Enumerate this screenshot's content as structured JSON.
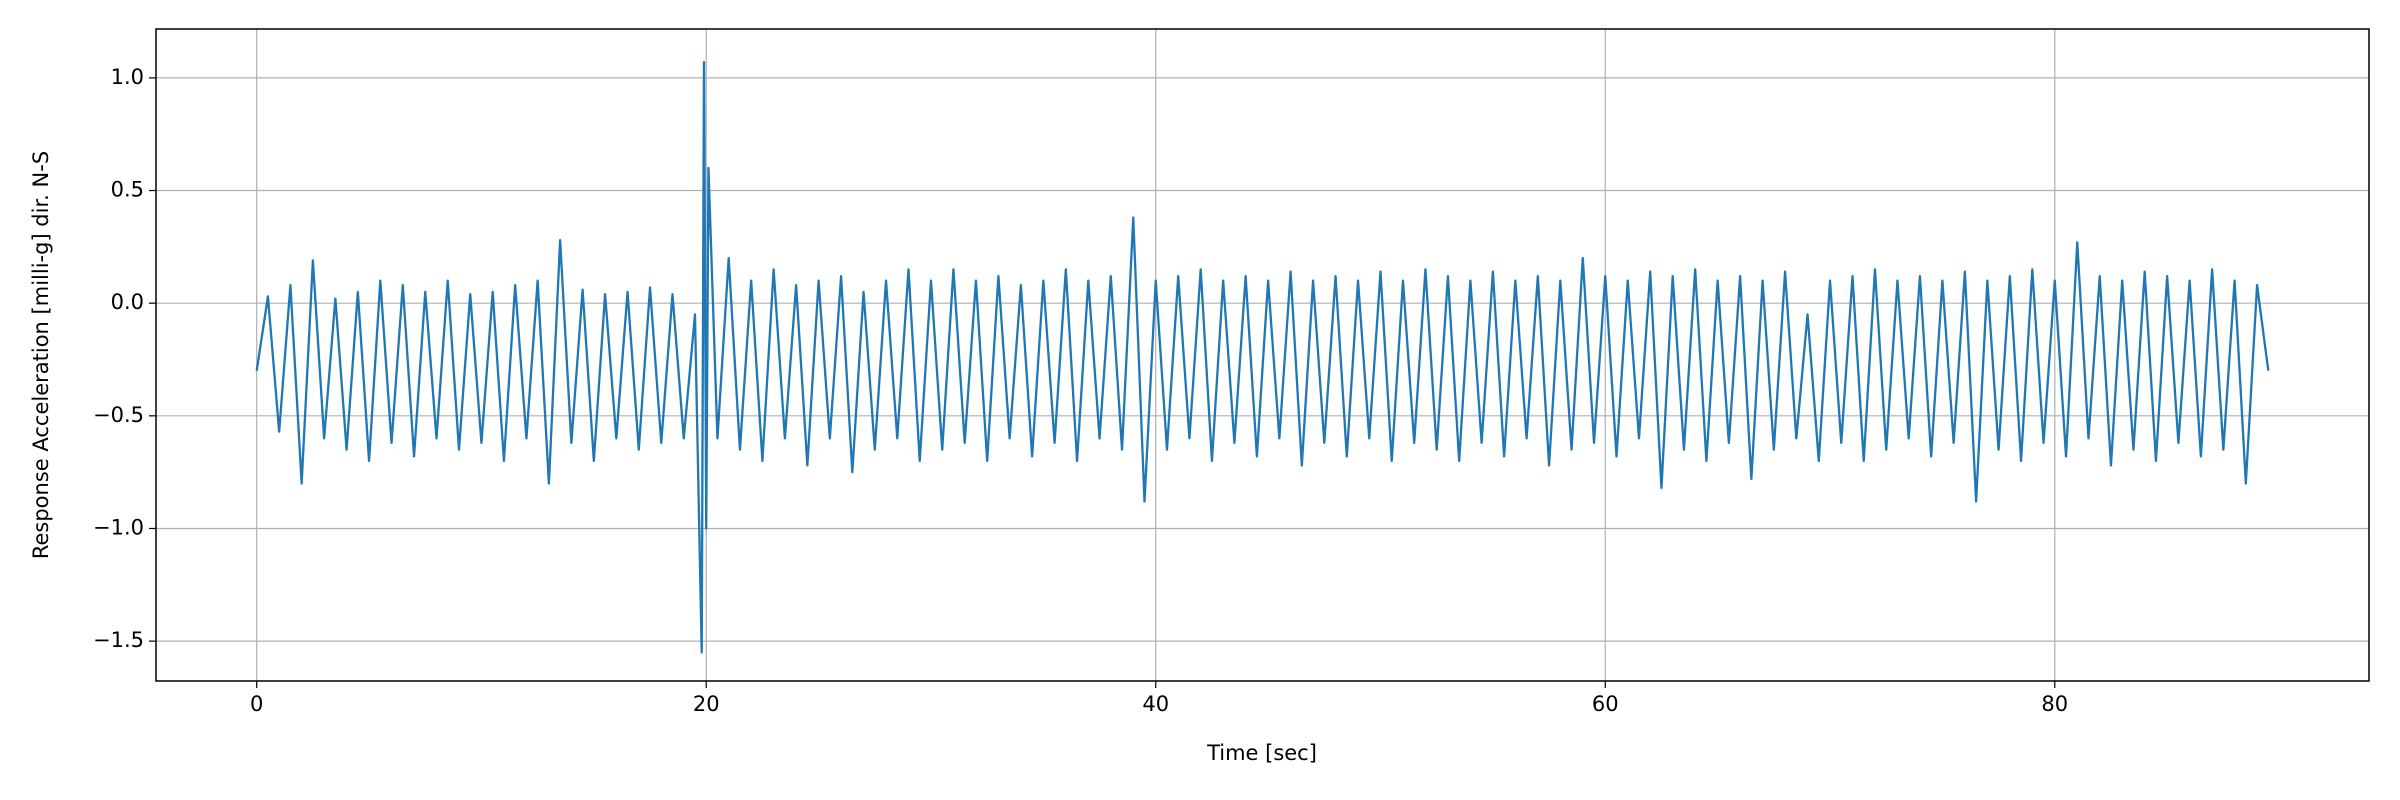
{
  "chart_data": {
    "type": "line",
    "xlabel": "Time [sec]",
    "ylabel": "Response Acceleration [milli-g] dir. N-S",
    "color": "#1f77b4",
    "grid": true,
    "xlim": [
      -4.48,
      93.98
    ],
    "ylim": [
      -1.677,
      1.217
    ],
    "xticks": [
      0,
      20,
      40,
      60,
      80
    ],
    "yticks": [
      {
        "value": -1.5,
        "label": "−1.5"
      },
      {
        "value": -1.0,
        "label": "−1.0"
      },
      {
        "value": -0.5,
        "label": "−0.5"
      },
      {
        "value": 0.0,
        "label": "0.0"
      },
      {
        "value": 0.5,
        "label": "0.5"
      },
      {
        "value": 1.0,
        "label": "1.0"
      }
    ],
    "x": [
      0,
      0.5,
      1,
      1.5,
      2,
      2.5,
      3,
      3.5,
      4,
      4.5,
      5,
      5.5,
      6,
      6.5,
      7,
      7.5,
      8,
      8.5,
      9,
      9.5,
      10,
      10.5,
      11,
      11.5,
      12,
      12.5,
      13,
      13.5,
      14,
      14.5,
      15,
      15.5,
      16,
      16.5,
      17,
      17.5,
      18,
      18.5,
      19,
      19.5,
      19.8,
      19.9,
      20,
      20.1,
      20.5,
      21,
      21.5,
      22,
      22.5,
      23,
      23.5,
      24,
      24.5,
      25,
      25.5,
      26,
      26.5,
      27,
      27.5,
      28,
      28.5,
      29,
      29.5,
      30,
      30.5,
      31,
      31.5,
      32,
      32.5,
      33,
      33.5,
      34,
      34.5,
      35,
      35.5,
      36,
      36.5,
      37,
      37.5,
      38,
      38.5,
      39,
      39.5,
      40,
      40.5,
      41,
      41.5,
      42,
      42.5,
      43,
      43.5,
      44,
      44.5,
      45,
      45.5,
      46,
      46.5,
      47,
      47.5,
      48,
      48.5,
      49,
      49.5,
      50,
      50.5,
      51,
      51.5,
      52,
      52.5,
      53,
      53.5,
      54,
      54.5,
      55,
      55.5,
      56,
      56.5,
      57,
      57.5,
      58,
      58.5,
      59,
      59.5,
      60,
      60.5,
      61,
      61.5,
      62,
      62.5,
      63,
      63.5,
      64,
      64.5,
      65,
      65.5,
      66,
      66.5,
      67,
      67.5,
      68,
      68.5,
      69,
      69.5,
      70,
      70.5,
      71,
      71.5,
      72,
      72.5,
      73,
      73.5,
      74,
      74.5,
      75,
      75.5,
      76,
      76.5,
      77,
      77.5,
      78,
      78.5,
      79,
      79.5,
      80,
      80.5,
      81,
      81.5,
      82,
      82.5,
      83,
      83.5,
      84,
      84.5,
      85,
      85.5,
      86,
      86.5,
      87,
      87.5,
      88,
      88.5,
      89,
      89.5
    ],
    "values": [
      -0.3,
      0.03,
      -0.57,
      0.08,
      -0.8,
      0.19,
      -0.6,
      0.02,
      -0.65,
      0.05,
      -0.7,
      0.1,
      -0.62,
      0.08,
      -0.68,
      0.05,
      -0.6,
      0.1,
      -0.65,
      0.04,
      -0.62,
      0.05,
      -0.7,
      0.08,
      -0.6,
      0.1,
      -0.8,
      0.28,
      -0.62,
      0.06,
      -0.7,
      0.04,
      -0.6,
      0.05,
      -0.65,
      0.07,
      -0.62,
      0.04,
      -0.6,
      -0.05,
      -1.55,
      1.07,
      -1.0,
      0.6,
      -0.6,
      0.2,
      -0.65,
      0.1,
      -0.7,
      0.15,
      -0.6,
      0.08,
      -0.72,
      0.1,
      -0.6,
      0.12,
      -0.75,
      0.05,
      -0.65,
      0.1,
      -0.6,
      0.15,
      -0.7,
      0.1,
      -0.65,
      0.15,
      -0.62,
      0.1,
      -0.7,
      0.12,
      -0.6,
      0.08,
      -0.68,
      0.1,
      -0.62,
      0.15,
      -0.7,
      0.1,
      -0.6,
      0.12,
      -0.65,
      0.38,
      -0.88,
      0.1,
      -0.65,
      0.12,
      -0.6,
      0.15,
      -0.7,
      0.1,
      -0.62,
      0.12,
      -0.68,
      0.1,
      -0.6,
      0.14,
      -0.72,
      0.1,
      -0.62,
      0.12,
      -0.68,
      0.1,
      -0.6,
      0.14,
      -0.7,
      0.1,
      -0.62,
      0.15,
      -0.65,
      0.12,
      -0.7,
      0.1,
      -0.62,
      0.14,
      -0.68,
      0.1,
      -0.6,
      0.12,
      -0.72,
      0.1,
      -0.65,
      0.2,
      -0.62,
      0.12,
      -0.68,
      0.1,
      -0.6,
      0.14,
      -0.82,
      0.12,
      -0.65,
      0.15,
      -0.7,
      0.1,
      -0.62,
      0.12,
      -0.78,
      0.1,
      -0.65,
      0.14,
      -0.6,
      -0.05,
      -0.7,
      0.1,
      -0.62,
      0.12,
      -0.7,
      0.15,
      -0.65,
      0.1,
      -0.6,
      0.12,
      -0.68,
      0.1,
      -0.62,
      0.14,
      -0.88,
      0.1,
      -0.65,
      0.12,
      -0.7,
      0.15,
      -0.62,
      0.1,
      -0.68,
      0.27,
      -0.6,
      0.12,
      -0.72,
      0.1,
      -0.65,
      0.14,
      -0.7,
      0.12,
      -0.62,
      0.1,
      -0.68,
      0.15,
      -0.65,
      0.1,
      -0.8,
      0.08,
      -0.3
    ]
  }
}
